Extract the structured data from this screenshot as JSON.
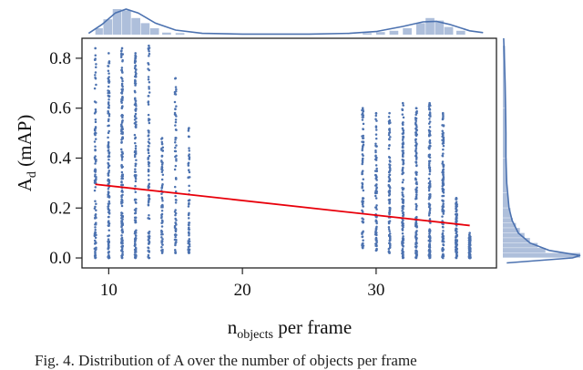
{
  "chart_data": {
    "type": "scatter",
    "title": "",
    "xlabel_main": "n",
    "xlabel_sub": "objects",
    "xlabel_rest": " per frame",
    "ylabel_main": "A",
    "ylabel_sub": "d",
    "ylabel_rest": " (mAP)",
    "xlim": [
      8,
      39
    ],
    "ylim": [
      -0.04,
      0.88
    ],
    "xticks": [
      10,
      20,
      30
    ],
    "yticks": [
      0.0,
      0.2,
      0.4,
      0.6,
      0.8
    ],
    "ytick_labels": [
      "0.0",
      "0.2",
      "0.4",
      "0.6",
      "0.8"
    ],
    "grid": false,
    "colors": {
      "points": "#4c72b0",
      "regression": "#e8000b",
      "marginal": "#4c72b0"
    },
    "scatter_columns": [
      {
        "x": 9,
        "ymin": 0.0,
        "ymax": 0.84,
        "density": 0.55
      },
      {
        "x": 10,
        "ymin": 0.0,
        "ymax": 0.82,
        "density": 0.85
      },
      {
        "x": 11,
        "ymin": 0.0,
        "ymax": 0.84,
        "density": 1.0
      },
      {
        "x": 12,
        "ymin": 0.0,
        "ymax": 0.82,
        "density": 0.85
      },
      {
        "x": 13,
        "ymin": 0.0,
        "ymax": 0.85,
        "density": 0.5
      },
      {
        "x": 14,
        "ymin": 0.02,
        "ymax": 0.48,
        "density": 0.3
      },
      {
        "x": 15,
        "ymin": 0.02,
        "ymax": 0.72,
        "density": 0.3
      },
      {
        "x": 16,
        "ymin": 0.02,
        "ymax": 0.52,
        "density": 0.25
      },
      {
        "x": 29,
        "ymin": 0.04,
        "ymax": 0.6,
        "density": 0.35
      },
      {
        "x": 30,
        "ymin": 0.03,
        "ymax": 0.58,
        "density": 0.45
      },
      {
        "x": 31,
        "ymin": 0.02,
        "ymax": 0.58,
        "density": 0.55
      },
      {
        "x": 32,
        "ymin": 0.0,
        "ymax": 0.62,
        "density": 0.7
      },
      {
        "x": 33,
        "ymin": 0.0,
        "ymax": 0.6,
        "density": 0.8
      },
      {
        "x": 34,
        "ymin": 0.0,
        "ymax": 0.62,
        "density": 0.9
      },
      {
        "x": 35,
        "ymin": 0.0,
        "ymax": 0.58,
        "density": 0.7
      },
      {
        "x": 36,
        "ymin": 0.0,
        "ymax": 0.24,
        "density": 0.5
      },
      {
        "x": 37,
        "ymin": 0.0,
        "ymax": 0.1,
        "density": 0.5
      }
    ],
    "regression": {
      "x": [
        9,
        37
      ],
      "y": [
        0.295,
        0.13
      ]
    },
    "marginal_x": {
      "bins": [
        {
          "x0": 9.0,
          "x1": 9.6,
          "count": 0.25
        },
        {
          "x0": 9.6,
          "x1": 10.3,
          "count": 0.6
        },
        {
          "x0": 10.3,
          "x1": 11.0,
          "count": 1.0
        },
        {
          "x0": 11.0,
          "x1": 11.7,
          "count": 0.95
        },
        {
          "x0": 11.7,
          "x1": 12.4,
          "count": 0.65
        },
        {
          "x0": 12.4,
          "x1": 13.1,
          "count": 0.45
        },
        {
          "x0": 13.1,
          "x1": 13.8,
          "count": 0.25
        },
        {
          "x0": 14.0,
          "x1": 14.7,
          "count": 0.08
        },
        {
          "x0": 15.0,
          "x1": 15.7,
          "count": 0.06
        },
        {
          "x0": 29.0,
          "x1": 29.7,
          "count": 0.06
        },
        {
          "x0": 30.0,
          "x1": 30.7,
          "count": 0.1
        },
        {
          "x0": 31.0,
          "x1": 31.7,
          "count": 0.15
        },
        {
          "x0": 32.0,
          "x1": 32.7,
          "count": 0.25
        },
        {
          "x0": 33.0,
          "x1": 33.7,
          "count": 0.45
        },
        {
          "x0": 33.7,
          "x1": 34.4,
          "count": 0.65
        },
        {
          "x0": 34.4,
          "x1": 35.1,
          "count": 0.55
        },
        {
          "x0": 35.1,
          "x1": 35.8,
          "count": 0.3
        },
        {
          "x0": 36.0,
          "x1": 36.7,
          "count": 0.15
        }
      ],
      "kde": [
        [
          8.5,
          0.05
        ],
        [
          9.5,
          0.4
        ],
        [
          10.5,
          0.85
        ],
        [
          11.3,
          1.0
        ],
        [
          12.2,
          0.85
        ],
        [
          13.5,
          0.45
        ],
        [
          15,
          0.18
        ],
        [
          17,
          0.05
        ],
        [
          20,
          0.02
        ],
        [
          25,
          0.02
        ],
        [
          28,
          0.05
        ],
        [
          30,
          0.12
        ],
        [
          32,
          0.32
        ],
        [
          33.5,
          0.5
        ],
        [
          34.5,
          0.52
        ],
        [
          35.5,
          0.4
        ],
        [
          37,
          0.15
        ],
        [
          38,
          0.08
        ]
      ]
    },
    "marginal_y": {
      "bins": [
        {
          "y0": 0.0,
          "y1": 0.02,
          "count": 1.0
        },
        {
          "y0": 0.02,
          "y1": 0.04,
          "count": 0.55
        },
        {
          "y0": 0.04,
          "y1": 0.06,
          "count": 0.45
        },
        {
          "y0": 0.06,
          "y1": 0.08,
          "count": 0.35
        },
        {
          "y0": 0.08,
          "y1": 0.1,
          "count": 0.28
        },
        {
          "y0": 0.1,
          "y1": 0.12,
          "count": 0.22
        },
        {
          "y0": 0.12,
          "y1": 0.14,
          "count": 0.17
        },
        {
          "y0": 0.14,
          "y1": 0.16,
          "count": 0.13
        },
        {
          "y0": 0.16,
          "y1": 0.2,
          "count": 0.1
        },
        {
          "y0": 0.2,
          "y1": 0.26,
          "count": 0.07
        },
        {
          "y0": 0.26,
          "y1": 0.4,
          "count": 0.05
        },
        {
          "y0": 0.4,
          "y1": 0.6,
          "count": 0.04
        },
        {
          "y0": 0.6,
          "y1": 0.85,
          "count": 0.03
        }
      ],
      "kde": [
        [
          -0.02,
          0.05
        ],
        [
          0.0,
          0.9
        ],
        [
          0.01,
          1.0
        ],
        [
          0.03,
          0.6
        ],
        [
          0.06,
          0.35
        ],
        [
          0.1,
          0.2
        ],
        [
          0.15,
          0.12
        ],
        [
          0.2,
          0.08
        ],
        [
          0.3,
          0.05
        ],
        [
          0.4,
          0.04
        ],
        [
          0.5,
          0.04
        ],
        [
          0.6,
          0.035
        ],
        [
          0.7,
          0.03
        ],
        [
          0.8,
          0.02
        ],
        [
          0.88,
          0.01
        ]
      ]
    }
  },
  "caption": {
    "text": "Fig. 4. Distribution of A  over the number of objects per frame"
  }
}
